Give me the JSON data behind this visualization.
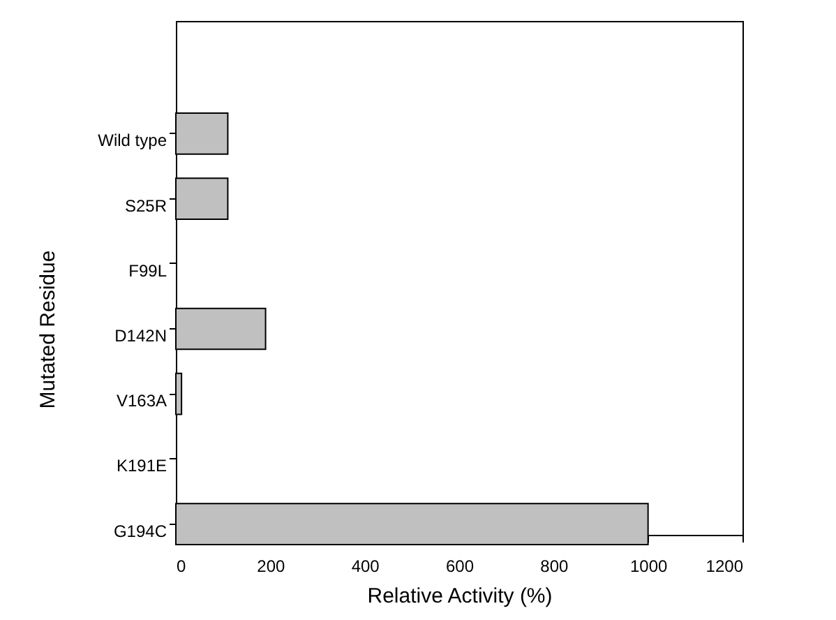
{
  "chart_data": {
    "type": "bar",
    "orientation": "horizontal",
    "xlabel": "Relative Activity (%)",
    "ylabel": "Mutated Residue",
    "categories": [
      "Wild type",
      "S25R",
      "F99L",
      "D142N",
      "V163A",
      "K191E",
      "G194C"
    ],
    "values": [
      110,
      110,
      0,
      190,
      12,
      0,
      1000
    ],
    "color": "#c0c0c0",
    "xlim": [
      0,
      1200
    ],
    "xticks": [
      0,
      200,
      400,
      600,
      800,
      1000,
      1200
    ],
    "grid": false
  }
}
